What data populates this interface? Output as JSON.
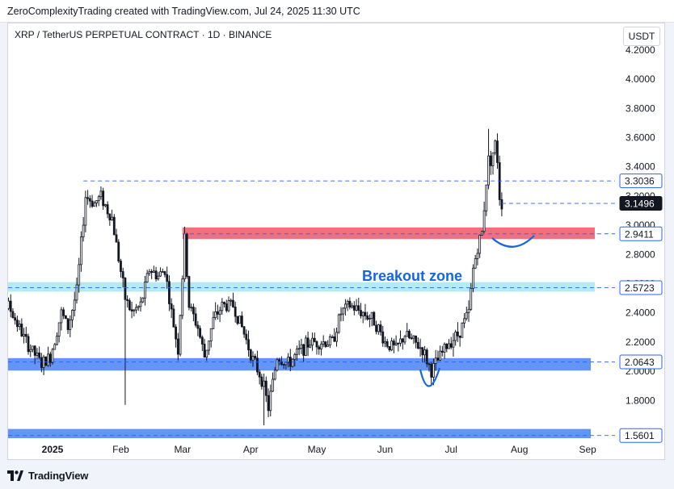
{
  "header": {
    "text": "ZeroComplexityTrading created with TradingView.com, Jul 24, 2025 11:30 UTC"
  },
  "footer": {
    "brand": "TradingView"
  },
  "colors": {
    "up": "#131722",
    "down": "#131722",
    "red_zone": "#f2707e",
    "cyan_zone": "#b2ebf2",
    "blue_zone": "#5b8ff9",
    "annotation": "#1565e0",
    "dash": "#2962ff"
  },
  "chart_data": {
    "type": "candlestick",
    "title": "XRP / TetherUS PERPETUAL CONTRACT · 1D · BINANCE",
    "currency": "USDT",
    "ylim": [
      1.6,
      4.3
    ],
    "y_ticks": [
      "1.8000",
      "2.0000",
      "2.2000",
      "2.4000",
      "2.6000",
      "2.8000",
      "3.0000",
      "3.2000",
      "3.4000",
      "3.6000",
      "3.8000",
      "4.0000",
      "4.2000"
    ],
    "x_ticks": [
      {
        "label": "2025",
        "date": "2025-01-01",
        "bold": true
      },
      {
        "label": "Feb",
        "date": "2025-02-01"
      },
      {
        "label": "Mar",
        "date": "2025-03-01"
      },
      {
        "label": "Apr",
        "date": "2025-04-01"
      },
      {
        "label": "May",
        "date": "2025-05-01"
      },
      {
        "label": "Jun",
        "date": "2025-06-01"
      },
      {
        "label": "Jul",
        "date": "2025-07-01"
      },
      {
        "label": "Aug",
        "date": "2025-08-01"
      },
      {
        "label": "Sep",
        "date": "2025-09-01"
      }
    ],
    "price_path": [
      [
        "2024-12-01",
        2.6
      ],
      [
        "2024-12-05",
        2.4
      ],
      [
        "2024-12-12",
        2.45
      ],
      [
        "2024-12-20",
        2.2
      ],
      [
        "2024-12-27",
        2.05
      ],
      [
        "2024-12-31",
        2.1
      ],
      [
        "2025-01-05",
        2.4
      ],
      [
        "2025-01-08",
        2.3
      ],
      [
        "2025-01-12",
        2.55
      ],
      [
        "2025-01-16",
        3.2
      ],
      [
        "2025-01-20",
        3.15
      ],
      [
        "2025-01-23",
        3.2
      ],
      [
        "2025-01-26",
        3.1
      ],
      [
        "2025-01-28",
        3.05
      ],
      [
        "2025-02-03",
        2.5
      ],
      [
        "2025-02-06",
        2.4
      ],
      [
        "2025-02-10",
        2.45
      ],
      [
        "2025-02-14",
        2.7
      ],
      [
        "2025-02-18",
        2.65
      ],
      [
        "2025-02-21",
        2.7
      ],
      [
        "2025-02-24",
        2.4
      ],
      [
        "2025-02-27",
        2.15
      ],
      [
        "2025-03-02",
        2.9
      ],
      [
        "2025-03-04",
        2.45
      ],
      [
        "2025-03-08",
        2.3
      ],
      [
        "2025-03-11",
        2.1
      ],
      [
        "2025-03-15",
        2.35
      ],
      [
        "2025-03-19",
        2.45
      ],
      [
        "2025-03-24",
        2.45
      ],
      [
        "2025-03-28",
        2.3
      ],
      [
        "2025-04-02",
        2.08
      ],
      [
        "2025-04-06",
        1.95
      ],
      [
        "2025-04-09",
        1.75
      ],
      [
        "2025-04-13",
        2.1
      ],
      [
        "2025-04-18",
        2.05
      ],
      [
        "2025-04-24",
        2.15
      ],
      [
        "2025-04-28",
        2.2
      ],
      [
        "2025-05-04",
        2.2
      ],
      [
        "2025-05-08",
        2.2
      ],
      [
        "2025-05-12",
        2.4
      ],
      [
        "2025-05-16",
        2.45
      ],
      [
        "2025-05-22",
        2.4
      ],
      [
        "2025-05-27",
        2.35
      ],
      [
        "2025-06-01",
        2.2
      ],
      [
        "2025-06-06",
        2.15
      ],
      [
        "2025-06-10",
        2.25
      ],
      [
        "2025-06-14",
        2.2
      ],
      [
        "2025-06-18",
        2.15
      ],
      [
        "2025-06-22",
        2.0
      ],
      [
        "2025-06-26",
        2.1
      ],
      [
        "2025-06-30",
        2.2
      ],
      [
        "2025-07-04",
        2.25
      ],
      [
        "2025-07-09",
        2.4
      ],
      [
        "2025-07-11",
        2.7
      ],
      [
        "2025-07-13",
        2.85
      ],
      [
        "2025-07-15",
        2.95
      ],
      [
        "2025-07-17",
        3.3
      ],
      [
        "2025-07-18",
        3.45
      ],
      [
        "2025-07-19",
        3.45
      ],
      [
        "2025-07-20",
        3.5
      ],
      [
        "2025-07-21",
        3.55
      ],
      [
        "2025-07-22",
        3.45
      ],
      [
        "2025-07-23",
        3.2
      ],
      [
        "2025-07-24",
        3.1496
      ]
    ],
    "wicks": [
      {
        "date": "2025-02-03",
        "low": 1.77
      },
      {
        "date": "2025-03-02",
        "high": 2.99
      },
      {
        "date": "2025-04-07",
        "low": 1.63
      },
      {
        "date": "2025-07-18",
        "high": 3.66
      }
    ],
    "zones": [
      {
        "name": "red",
        "from": 2.905,
        "to": 2.985,
        "start": "2025-03-01"
      },
      {
        "name": "cyan",
        "from": 2.545,
        "to": 2.61,
        "start": "2024-12-01"
      },
      {
        "name": "blue",
        "from": 2.005,
        "to": 2.09,
        "start": "2024-12-01"
      },
      {
        "name": "blue",
        "from": 1.535,
        "to": 1.605,
        "start": "2024-12-01"
      }
    ],
    "levels": [
      {
        "label": "3.3036",
        "value": 3.3036,
        "start": "2025-01-15",
        "style": "outline"
      },
      {
        "label": "3.1496",
        "value": 3.1496,
        "start": "2025-07-24",
        "style": "solid",
        "current": true
      },
      {
        "label": "2.9411",
        "value": 2.9411,
        "start": "2025-03-01",
        "style": "outline"
      },
      {
        "label": "2.5723",
        "value": 2.5723,
        "start": "2024-12-01",
        "style": "outline"
      },
      {
        "label": "2.0643",
        "value": 2.0643,
        "start": "2024-12-01",
        "style": "outline"
      },
      {
        "label": "1.5601",
        "value": 1.5601,
        "start": "2024-12-01",
        "style": "outline"
      }
    ],
    "annotations": [
      {
        "text": "Breakout zone",
        "date": "2025-05-25",
        "value": 2.7
      }
    ]
  }
}
